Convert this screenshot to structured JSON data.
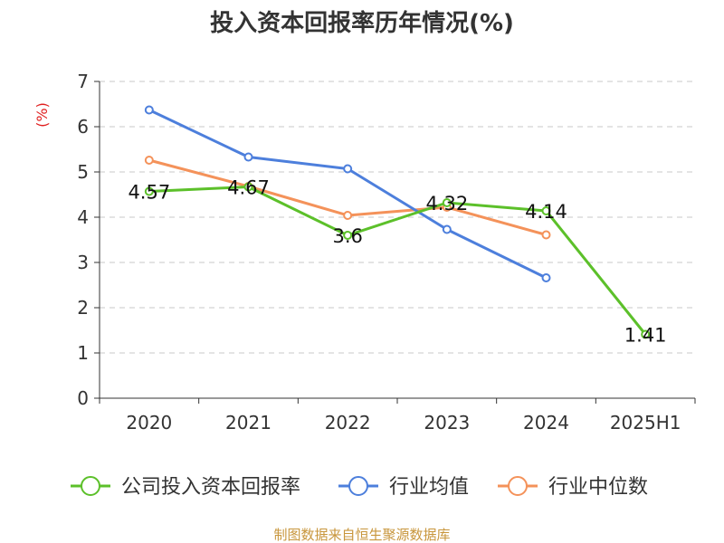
{
  "chart_data": {
    "type": "line",
    "title": "投入资本回报率历年情况(%)",
    "ylabel": "(%)",
    "xlabel": "",
    "categories": [
      "2020",
      "2021",
      "2022",
      "2023",
      "2024",
      "2025H1"
    ],
    "ylim": [
      0,
      7
    ],
    "yticks": [
      0,
      1,
      2,
      3,
      4,
      5,
      6,
      7
    ],
    "grid": true,
    "legend_position": "bottom",
    "series": [
      {
        "name": "公司投入资本回报率",
        "color": "#5cc02a",
        "values": [
          4.57,
          4.67,
          3.6,
          4.32,
          4.14,
          1.41
        ],
        "labels": [
          "4.57",
          "4.67",
          "3.6",
          "4.32",
          "4.14",
          "1.41"
        ]
      },
      {
        "name": "行业均值",
        "color": "#4d7fdc",
        "values": [
          6.37,
          5.33,
          5.07,
          3.73,
          2.66,
          null
        ]
      },
      {
        "name": "行业中位数",
        "color": "#f4925a",
        "values": [
          5.26,
          4.68,
          4.04,
          4.22,
          3.61,
          null
        ]
      }
    ]
  },
  "source": "制图数据来自恒生聚源数据库"
}
